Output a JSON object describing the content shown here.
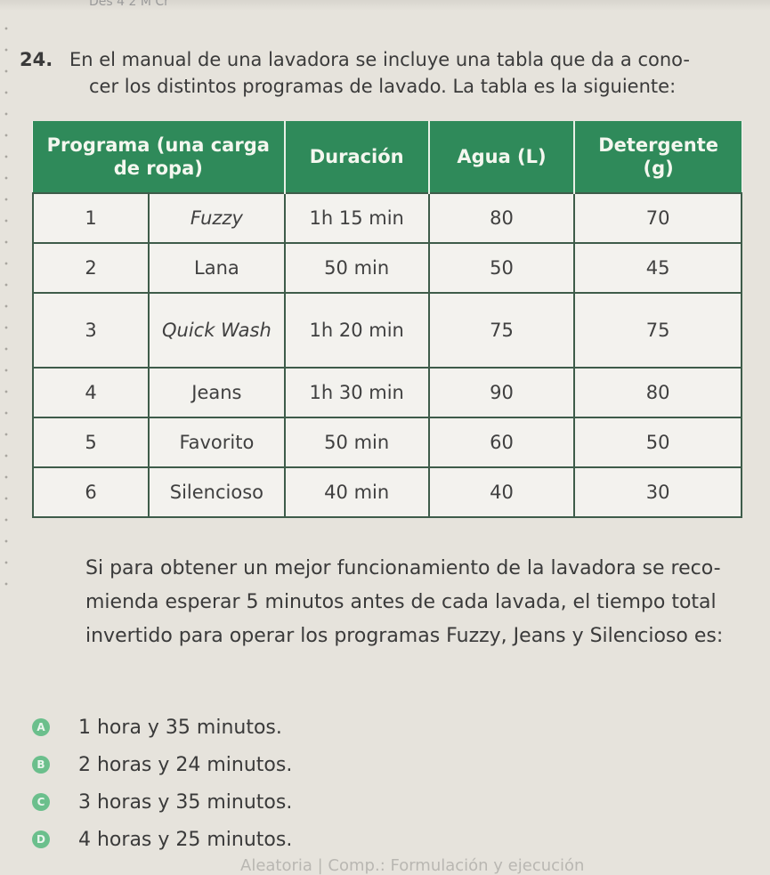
{
  "page_header": {
    "fragment": "Des 4 2 M Cr"
  },
  "question": {
    "number": "24.",
    "line1": "En el manual de una lavadora se incluye una tabla que da a cono-",
    "line2": "cer los distintos programas de lavado. La tabla es la siguiente:"
  },
  "table": {
    "headers": {
      "programa": "Programa (una carga de ropa)",
      "duracion": "Duración",
      "agua": "Agua (L)",
      "detergente": "Detergente (g)"
    },
    "rows": [
      {
        "num": "1",
        "name": "Fuzzy",
        "duration": "1h 15 min",
        "water": "80",
        "detergent": "70"
      },
      {
        "num": "2",
        "name": "Lana",
        "duration": "50 min",
        "water": "50",
        "detergent": "45"
      },
      {
        "num": "3",
        "name": "Quick Wash",
        "duration": "1h 20 min",
        "water": "75",
        "detergent": "75"
      },
      {
        "num": "4",
        "name": "Jeans",
        "duration": "1h 30 min",
        "water": "90",
        "detergent": "80"
      },
      {
        "num": "5",
        "name": "Favorito",
        "duration": "50 min",
        "water": "60",
        "detergent": "50"
      },
      {
        "num": "6",
        "name": "Silencioso",
        "duration": "40 min",
        "water": "40",
        "detergent": "30"
      }
    ]
  },
  "paragraph": "Si para obtener un mejor funcionamiento de la lavadora se reco- mienda esperar 5 minutos antes de cada lavada, el tiempo total invertido para operar los programas Fuzzy, Jeans y Silencioso es:",
  "options": [
    {
      "letter": "A",
      "text": "1 hora y 35 minutos."
    },
    {
      "letter": "B",
      "text": "2 horas y 24 minutos."
    },
    {
      "letter": "C",
      "text": "3 horas y 35 minutos."
    },
    {
      "letter": "D",
      "text": "4 horas y 25 minutos."
    }
  ],
  "footer": "Aleatoria | Comp.: Formulación y ejecución",
  "colors": {
    "header_green": "#2f8a5a",
    "badge_green": "#6bbf8c",
    "paper": "#e6e3dc"
  }
}
